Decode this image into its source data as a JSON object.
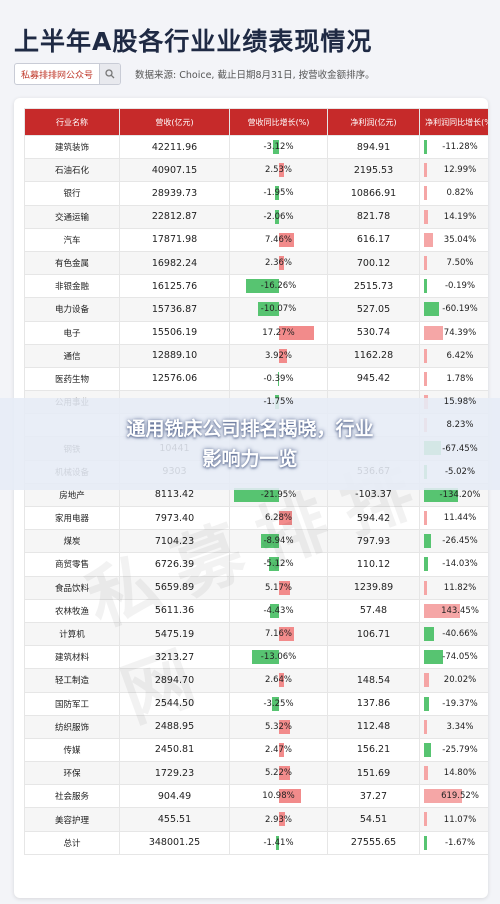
{
  "title": "上半年A股各行业业绩表现情况",
  "brand": "私募排排网公众号",
  "note": "数据来源: Choice, 截止日期8月31日, 按营收金额排序。",
  "headers": [
    "行业名称",
    "营收(亿元)",
    "营收同比增长(%)",
    "净利润(亿元)",
    "净利润同比增长(%)"
  ],
  "overlay": {
    "line1": "通用铣床公司排名揭晓，行业",
    "line2": "影响力一览"
  },
  "colors": {
    "header": "#c62a2a",
    "pos": "#f28b8b",
    "neg": "#57c471"
  },
  "rows": [
    {
      "name": "建筑装饰",
      "rev": "42211.96",
      "rg": "-3.12%",
      "rgv": -3.12,
      "np": "894.91",
      "ng": "-11.28%",
      "ngv": -11.28
    },
    {
      "name": "石油石化",
      "rev": "40907.15",
      "rg": "2.53%",
      "rgv": 2.53,
      "np": "2195.53",
      "ng": "12.99%",
      "ngv": 12.99
    },
    {
      "name": "银行",
      "rev": "28939.73",
      "rg": "-1.95%",
      "rgv": -1.95,
      "np": "10866.91",
      "ng": "0.82%",
      "ngv": 0.82
    },
    {
      "name": "交通运输",
      "rev": "22812.87",
      "rg": "-2.06%",
      "rgv": -2.06,
      "np": "821.78",
      "ng": "14.19%",
      "ngv": 14.19
    },
    {
      "name": "汽车",
      "rev": "17871.98",
      "rg": "7.46%",
      "rgv": 7.46,
      "np": "616.17",
      "ng": "35.04%",
      "ngv": 35.04
    },
    {
      "name": "有色金属",
      "rev": "16982.24",
      "rg": "2.36%",
      "rgv": 2.36,
      "np": "700.12",
      "ng": "7.50%",
      "ngv": 7.5
    },
    {
      "name": "非银金融",
      "rev": "16125.76",
      "rg": "-16.26%",
      "rgv": -16.26,
      "np": "2515.73",
      "ng": "-0.19%",
      "ngv": -0.19
    },
    {
      "name": "电力设备",
      "rev": "15736.87",
      "rg": "-10.07%",
      "rgv": -10.07,
      "np": "527.05",
      "ng": "-60.19%",
      "ngv": -60.19
    },
    {
      "name": "电子",
      "rev": "15506.19",
      "rg": "17.27%",
      "rgv": 17.27,
      "np": "530.74",
      "ng": "74.39%",
      "ngv": 74.39
    },
    {
      "name": "通信",
      "rev": "12889.10",
      "rg": "3.92%",
      "rgv": 3.92,
      "np": "1162.28",
      "ng": "6.42%",
      "ngv": 6.42
    },
    {
      "name": "医药生物",
      "rev": "12576.06",
      "rg": "-0.39%",
      "rgv": -0.39,
      "np": "945.42",
      "ng": "1.78%",
      "ngv": 1.78
    },
    {
      "name": "公用事业",
      "rev": "",
      "rg": "-1.75%",
      "rgv": -1.75,
      "np": "",
      "ng": "15.98%",
      "ngv": 15.98
    },
    {
      "name": "",
      "rev": "",
      "rg": "",
      "rgv": 0,
      "np": "",
      "ng": "8.23%",
      "ngv": 8.23
    },
    {
      "name": "钢铁",
      "rev": "10441",
      "rg": "",
      "rgv": 0,
      "np": "",
      "ng": "-67.45%",
      "ngv": -67.45
    },
    {
      "name": "机械设备",
      "rev": "9303",
      "rg": "",
      "rgv": 0,
      "np": "536.67",
      "ng": "-5.02%",
      "ngv": -5.02
    },
    {
      "name": "房地产",
      "rev": "8113.42",
      "rg": "-21.95%",
      "rgv": -21.95,
      "np": "-103.37",
      "ng": "-134.20%",
      "ngv": -134.2
    },
    {
      "name": "家用电器",
      "rev": "7973.40",
      "rg": "6.28%",
      "rgv": 6.28,
      "np": "594.42",
      "ng": "11.44%",
      "ngv": 11.44
    },
    {
      "name": "煤炭",
      "rev": "7104.23",
      "rg": "-8.94%",
      "rgv": -8.94,
      "np": "797.93",
      "ng": "-26.45%",
      "ngv": -26.45
    },
    {
      "name": "商贸零售",
      "rev": "6726.39",
      "rg": "-5.12%",
      "rgv": -5.12,
      "np": "110.12",
      "ng": "-14.03%",
      "ngv": -14.03
    },
    {
      "name": "食品饮料",
      "rev": "5659.89",
      "rg": "5.17%",
      "rgv": 5.17,
      "np": "1239.89",
      "ng": "11.82%",
      "ngv": 11.82
    },
    {
      "name": "农林牧渔",
      "rev": "5611.36",
      "rg": "-4.43%",
      "rgv": -4.43,
      "np": "57.48",
      "ng": "143.45%",
      "ngv": 143.45
    },
    {
      "name": "计算机",
      "rev": "5475.19",
      "rg": "7.16%",
      "rgv": 7.16,
      "np": "106.71",
      "ng": "-40.66%",
      "ngv": -40.66
    },
    {
      "name": "建筑材料",
      "rev": "3213.27",
      "rg": "-13.06%",
      "rgv": -13.06,
      "np": "",
      "ng": "-74.05%",
      "ngv": -74.05
    },
    {
      "name": "轻工制造",
      "rev": "2894.70",
      "rg": "2.64%",
      "rgv": 2.64,
      "np": "148.54",
      "ng": "20.02%",
      "ngv": 20.02
    },
    {
      "name": "国防军工",
      "rev": "2544.50",
      "rg": "-3.25%",
      "rgv": -3.25,
      "np": "137.86",
      "ng": "-19.37%",
      "ngv": -19.37
    },
    {
      "name": "纺织服饰",
      "rev": "2488.95",
      "rg": "5.32%",
      "rgv": 5.32,
      "np": "112.48",
      "ng": "3.34%",
      "ngv": 3.34
    },
    {
      "name": "传媒",
      "rev": "2450.81",
      "rg": "2.47%",
      "rgv": 2.47,
      "np": "156.21",
      "ng": "-25.79%",
      "ngv": -25.79
    },
    {
      "name": "环保",
      "rev": "1729.23",
      "rg": "5.22%",
      "rgv": 5.22,
      "np": "151.69",
      "ng": "14.80%",
      "ngv": 14.8
    },
    {
      "name": "社会服务",
      "rev": "904.49",
      "rg": "10.98%",
      "rgv": 10.98,
      "np": "37.27",
      "ng": "619.52%",
      "ngv": 619.52
    },
    {
      "name": "美容护理",
      "rev": "455.51",
      "rg": "2.93%",
      "rgv": 2.93,
      "np": "54.51",
      "ng": "11.07%",
      "ngv": 11.07
    },
    {
      "name": "总计",
      "rev": "348001.25",
      "rg": "-1.41%",
      "rgv": -1.41,
      "np": "27555.65",
      "ng": "-1.67%",
      "ngv": -1.67
    }
  ]
}
